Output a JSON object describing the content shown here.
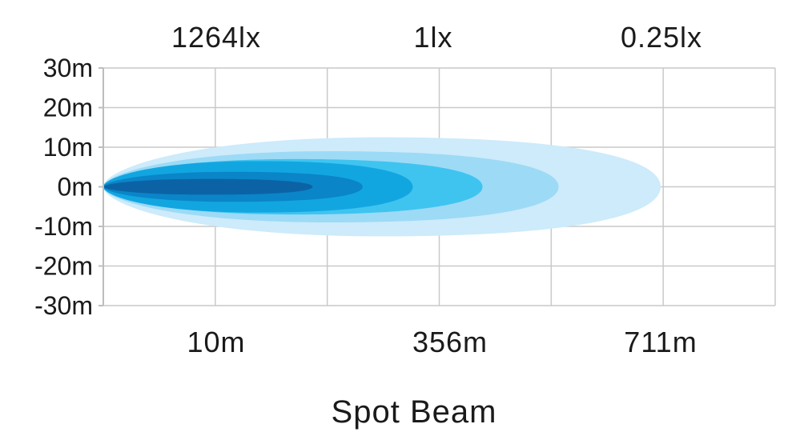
{
  "chart_data": {
    "type": "area",
    "title": "Spot Beam",
    "xlabel": "",
    "ylabel": "",
    "grid": true,
    "ylim": [
      -30,
      30
    ],
    "y_ticks": [
      "30m",
      "20m",
      "10m",
      "0m",
      "-10m",
      "-20m",
      "-30m"
    ],
    "y_tick_values": [
      30,
      20,
      10,
      0,
      -10,
      -20,
      -30
    ],
    "top_labels": [
      {
        "text": "1264lx",
        "at_m": 10
      },
      {
        "text": "1lx",
        "at_m": 356
      },
      {
        "text": "0.25lx",
        "at_m": 711
      }
    ],
    "bottom_labels": [
      {
        "text": "10m",
        "at_m": 10
      },
      {
        "text": "356m",
        "at_m": 356
      },
      {
        "text": "711m",
        "at_m": 711
      }
    ],
    "beam_colors": [
      "#cdebfa",
      "#9ddaf6",
      "#3fc4f0",
      "#12a6e1",
      "#0a85c8",
      "#0b63a6"
    ],
    "beam_layers": [
      {
        "reach_m": 711,
        "half_width_m": 12.5
      },
      {
        "reach_m": 550,
        "half_width_m": 9
      },
      {
        "reach_m": 430,
        "half_width_m": 7
      },
      {
        "reach_m": 320,
        "half_width_m": 6.5
      },
      {
        "reach_m": 241,
        "half_width_m": 3.8
      },
      {
        "reach_m": 162,
        "half_width_m": 2
      }
    ]
  }
}
